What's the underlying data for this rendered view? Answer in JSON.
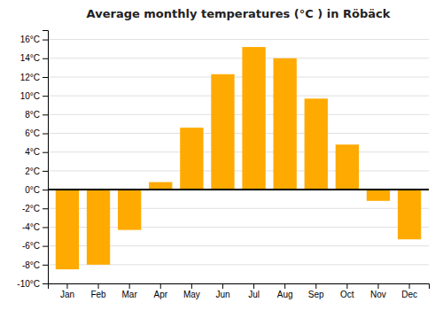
{
  "chart_data": {
    "type": "bar",
    "title": "Average monthly temperatures (°C ) in Röbäck",
    "categories": [
      "Jan",
      "Feb",
      "Mar",
      "Apr",
      "May",
      "Jun",
      "Jul",
      "Aug",
      "Sep",
      "Oct",
      "Nov",
      "Dec"
    ],
    "values": [
      -8.5,
      -8.0,
      -4.3,
      0.8,
      6.6,
      12.3,
      15.2,
      14.0,
      9.7,
      4.8,
      -1.2,
      -5.3
    ],
    "color": "#FFAA00",
    "ylim": [
      -10,
      17
    ],
    "yticks": [
      {
        "value": -10,
        "label": "-10°C"
      },
      {
        "value": -8,
        "label": "-8°C"
      },
      {
        "value": -6,
        "label": "-6°C"
      },
      {
        "value": -4,
        "label": "-4°C"
      },
      {
        "value": -2,
        "label": "-2°C"
      },
      {
        "value": 0,
        "label": "0°C"
      },
      {
        "value": 2,
        "label": "2°C"
      },
      {
        "value": 4,
        "label": "4°C"
      },
      {
        "value": 6,
        "label": "6°C"
      },
      {
        "value": 8,
        "label": "8°C"
      },
      {
        "value": 10,
        "label": "10°C"
      },
      {
        "value": 12,
        "label": "12°C"
      },
      {
        "value": 14,
        "label": "14°C"
      },
      {
        "value": 16,
        "label": "16°C"
      }
    ],
    "grid": true
  }
}
